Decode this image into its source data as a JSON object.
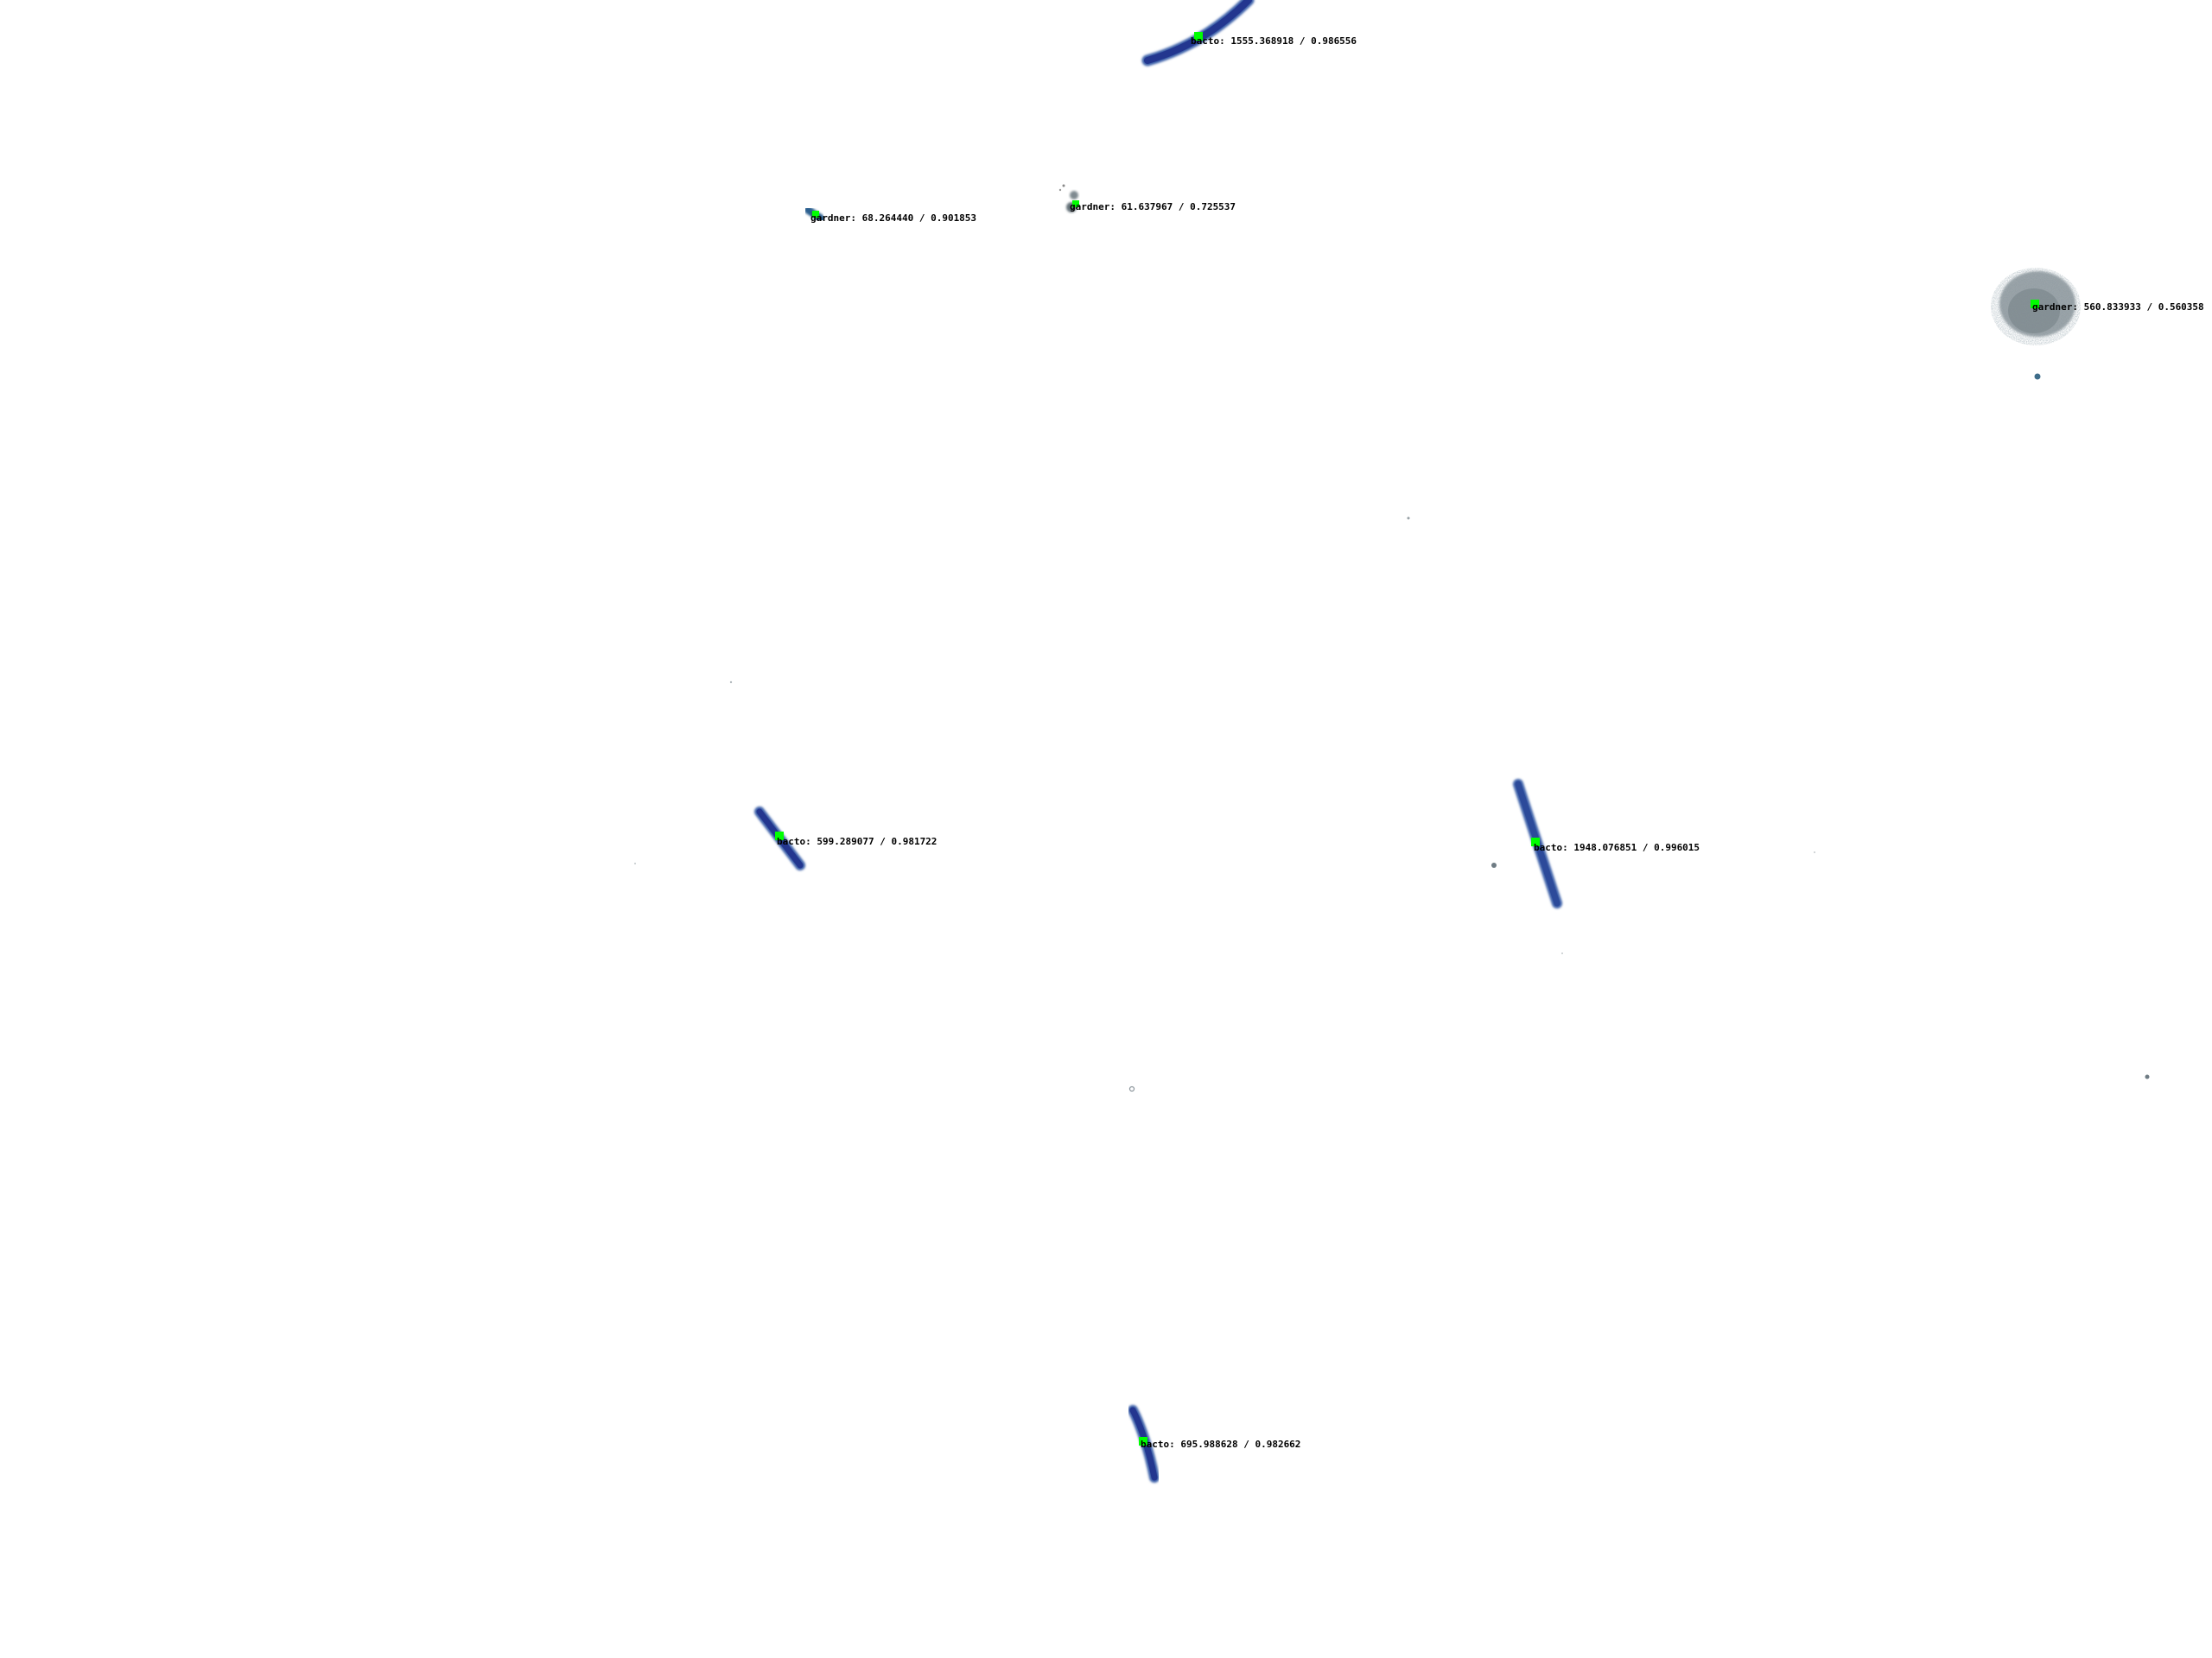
{
  "image": {
    "background": "#ffffff",
    "colors": {
      "bacteria_dark": "#23368f",
      "bacteria_mid": "#2c4a9a",
      "bacteria_light": "#3a5fa8",
      "cluster_gray": "#7f8a90",
      "cluster_dark": "#66737a",
      "centroid_marker": "#00ff00",
      "label_text": "#000000"
    }
  },
  "detections": [
    {
      "label": "bacto: 1555.368918 / 0.986556",
      "class": "bacto",
      "area": 1555.368918,
      "score": 0.986556
    },
    {
      "label": "gardner: 68.264440 / 0.901853",
      "class": "gardner",
      "area": 68.26444,
      "score": 0.901853
    },
    {
      "label": "gardner: 61.637967 / 0.725537",
      "class": "gardner",
      "area": 61.637967,
      "score": 0.725537
    },
    {
      "label": "gardner: 560.833933 / 0.560358",
      "class": "gardner",
      "area": 560.833933,
      "score": 0.560358
    },
    {
      "label": "bacto: 599.289077 / 0.981722",
      "class": "bacto",
      "area": 599.289077,
      "score": 0.981722
    },
    {
      "label": "bacto: 1948.076851 / 0.996015",
      "class": "bacto",
      "area": 1948.076851,
      "score": 0.996015
    },
    {
      "label": "bacto: 695.988628 / 0.982662",
      "class": "bacto",
      "area": 695.988628,
      "score": 0.982662
    }
  ]
}
